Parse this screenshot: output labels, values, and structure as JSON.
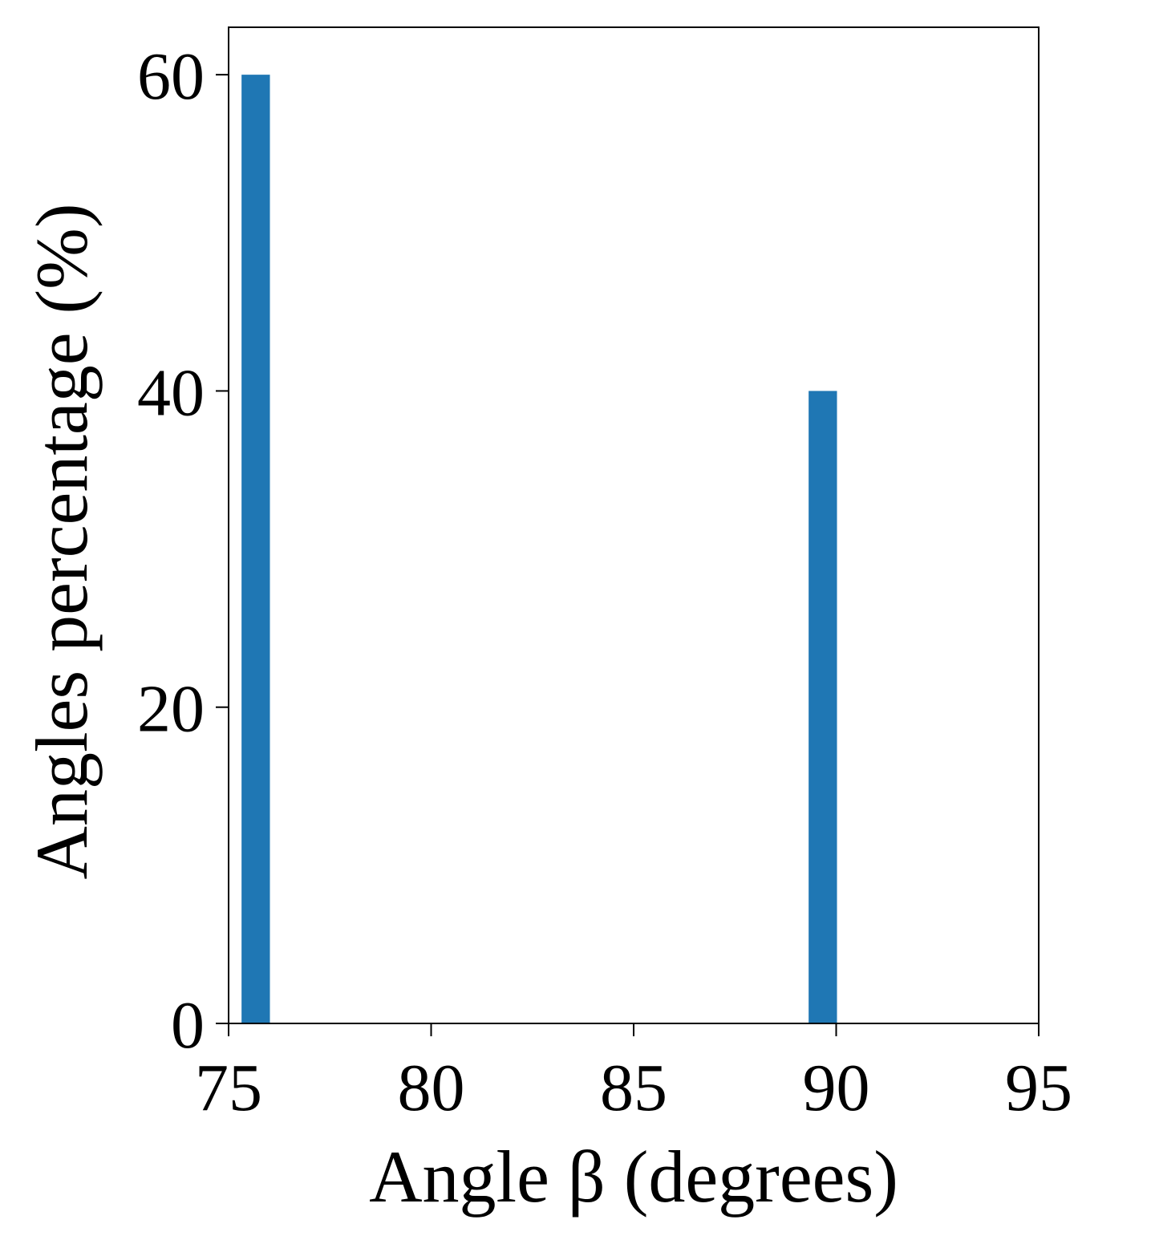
{
  "chart_data": {
    "type": "bar",
    "x_values": [
      75.67,
      89.67
    ],
    "values": [
      60,
      40
    ],
    "bar_width": 0.7,
    "xlabel": "Angle β (degrees)",
    "ylabel": "Angles percentage (%)",
    "xlim": [
      75,
      95
    ],
    "ylim": [
      0,
      63
    ],
    "xticks": [
      75,
      80,
      85,
      90,
      95
    ],
    "yticks": [
      0,
      20,
      40,
      60
    ],
    "xtick_labels": [
      "75",
      "80",
      "85",
      "90",
      "95"
    ],
    "ytick_labels": [
      "0",
      "20",
      "40",
      "60"
    ],
    "grid": false,
    "bar_color": "#1f77b4"
  }
}
